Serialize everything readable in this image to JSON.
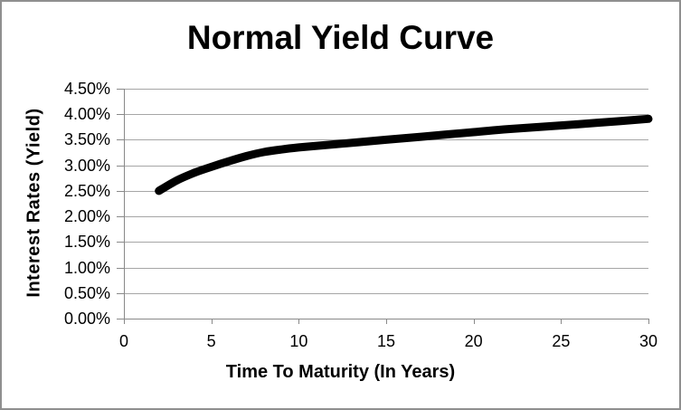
{
  "chart_data": {
    "type": "line",
    "title": "Normal Yield Curve",
    "xlabel": "Time To Maturity (In Years)",
    "ylabel": "Interest Rates (Yield)",
    "xlim": [
      0,
      30
    ],
    "ylim": [
      0,
      4.5
    ],
    "x_ticks": [
      {
        "value": 0,
        "label": "0"
      },
      {
        "value": 5,
        "label": "5"
      },
      {
        "value": 10,
        "label": "10"
      },
      {
        "value": 15,
        "label": "15"
      },
      {
        "value": 20,
        "label": "20"
      },
      {
        "value": 25,
        "label": "25"
      },
      {
        "value": 30,
        "label": "30"
      }
    ],
    "y_ticks": [
      {
        "value": 0.0,
        "label": "0.00%"
      },
      {
        "value": 0.5,
        "label": "0.50%"
      },
      {
        "value": 1.0,
        "label": "1.00%"
      },
      {
        "value": 1.5,
        "label": "1.50%"
      },
      {
        "value": 2.0,
        "label": "2.00%"
      },
      {
        "value": 2.5,
        "label": "2.50%"
      },
      {
        "value": 3.0,
        "label": "3.00%"
      },
      {
        "value": 3.5,
        "label": "3.50%"
      },
      {
        "value": 4.0,
        "label": "4.00%"
      },
      {
        "value": 4.5,
        "label": "4.50%"
      }
    ],
    "grid": "horizontal",
    "legend": "none",
    "series": [
      {
        "points": [
          [
            2,
            2.5
          ],
          [
            3,
            2.7
          ],
          [
            4,
            2.85
          ],
          [
            5,
            2.97
          ],
          [
            6,
            3.08
          ],
          [
            7,
            3.18
          ],
          [
            8,
            3.26
          ],
          [
            9,
            3.31
          ],
          [
            10,
            3.35
          ],
          [
            12,
            3.41
          ],
          [
            15,
            3.5
          ],
          [
            17,
            3.56
          ],
          [
            20,
            3.65
          ],
          [
            22,
            3.71
          ],
          [
            25,
            3.78
          ],
          [
            27,
            3.83
          ],
          [
            30,
            3.91
          ]
        ]
      }
    ],
    "colors": {
      "line": "#000000",
      "grid": "#a6a6a6",
      "axis": "#898989",
      "text": "#000000",
      "frame_border": "#8f8f8f",
      "background": "#ffffff"
    },
    "line_width": 9
  }
}
